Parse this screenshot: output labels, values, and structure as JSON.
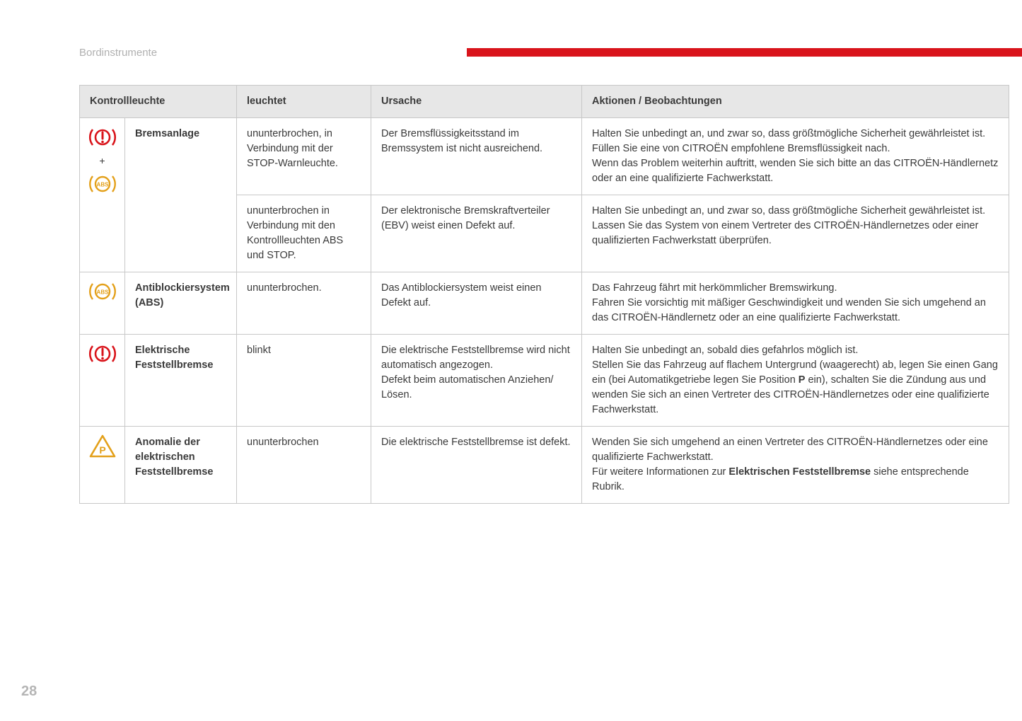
{
  "page": {
    "section_title": "Bordinstrumente",
    "page_number": "28",
    "accent_color": "#d9141b"
  },
  "table": {
    "headers": {
      "col1": "Kontrollleuchte",
      "col2": "leuchtet",
      "col3": "Ursache",
      "col4": "Aktionen / Beobachtungen"
    },
    "rows": [
      {
        "icon_type": "brake-abs-combo",
        "name": "Bremsanlage",
        "sub": [
          {
            "state": "ununterbrochen, in Verbindung mit der STOP-Warnleuchte.",
            "cause": "Der Bremsflüssigkeitsstand im Bremssystem ist nicht ausreichend.",
            "action": "Halten Sie unbedingt an, und zwar so, dass größtmögliche Sicherheit gewährleistet ist.\nFüllen Sie eine von CITROËN empfohlene Bremsflüssigkeit nach.\nWenn das Problem weiterhin auftritt, wenden Sie sich bitte an das CITROËN-Händlernetz oder an eine qualifizierte Fachwerkstatt."
          },
          {
            "state": "ununterbrochen in Verbindung mit den Kontrollleuchten ABS und STOP.",
            "cause": "Der elektronische Bremskraftverteiler (EBV) weist einen Defekt auf.",
            "action": "Halten Sie unbedingt an, und zwar so, dass größtmögliche Sicherheit gewährleistet ist.\nLassen Sie das System von einem Vertreter des CITROËN-Händlernetzes oder einer qualifizierten Fachwerkstatt überprüfen."
          }
        ]
      },
      {
        "icon_type": "abs",
        "name": "Antiblockiersystem (ABS)",
        "state": "ununterbrochen.",
        "cause": "Das Antiblockiersystem weist einen Defekt auf.",
        "action": "Das Fahrzeug fährt mit herkömmlicher Bremswirkung.\nFahren Sie vorsichtig mit mäßiger Geschwindigkeit und wenden Sie sich umgehend an das CITROËN-Händlernetz oder an eine qualifizierte Fachwerkstatt."
      },
      {
        "icon_type": "brake",
        "name": "Elektrische Feststellbremse",
        "state": "blinkt",
        "cause": "Die elektrische Feststellbremse wird nicht automatisch angezogen.\nDefekt beim automatischen Anziehen/ Lösen.",
        "action_parts": {
          "pre": "Halten Sie unbedingt an, sobald dies gefahrlos möglich ist.\nStellen Sie das Fahrzeug auf flachem Untergrund (waagerecht) ab, legen Sie einen Gang ein (bei Automatikgetriebe legen Sie Position ",
          "bold": "P",
          "post": " ein), schalten Sie die Zündung aus und wenden Sie sich an einen Vertreter des CITROËN-Händlernetzes oder eine qualifizierte Fachwerkstatt."
        }
      },
      {
        "icon_type": "park-triangle",
        "name": "Anomalie der elektrischen Feststellbremse",
        "state": "ununterbrochen",
        "cause": "Die elektrische Feststellbremse ist defekt.",
        "action_parts": {
          "pre": "Wenden Sie sich umgehend an einen Vertreter des CITROËN-Händlernetzes oder eine qualifizierte Fachwerkstatt.\nFür weitere Informationen zur ",
          "bold": "Elektrischen Feststellbremse",
          "post": " siehe entsprechende Rubrik."
        }
      }
    ]
  },
  "icons": {
    "brake_color": "#d9141b",
    "abs_color": "#e3a01a",
    "triangle_color": "#e3a01a"
  }
}
